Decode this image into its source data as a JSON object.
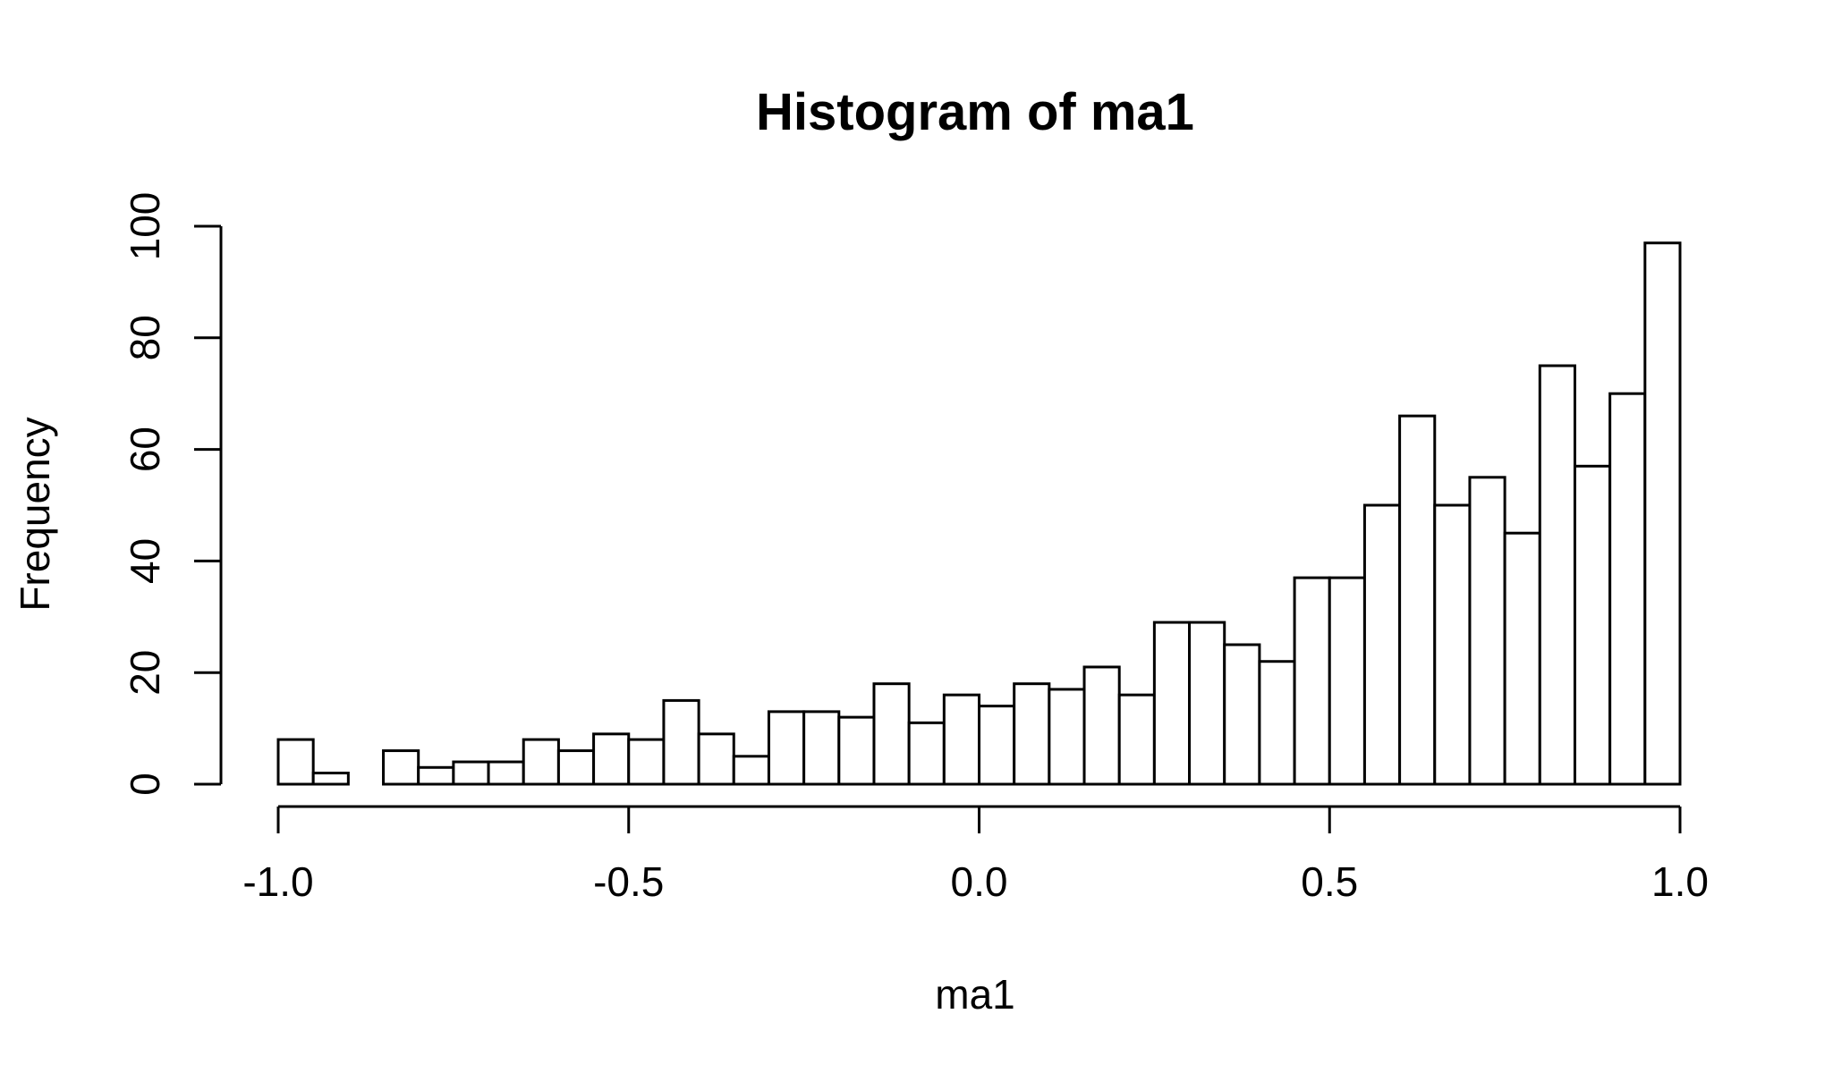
{
  "chart_data": {
    "type": "bar",
    "title": "Histogram of ma1",
    "xlabel": "ma1",
    "ylabel": "Frequency",
    "bin_width": 0.05,
    "bin_start": -1.0,
    "values": [
      8,
      2,
      0,
      6,
      3,
      4,
      4,
      8,
      6,
      9,
      8,
      15,
      9,
      5,
      13,
      13,
      12,
      18,
      11,
      16,
      14,
      18,
      17,
      21,
      16,
      29,
      29,
      25,
      22,
      37,
      37,
      50,
      66,
      50,
      55,
      45,
      75,
      57,
      70,
      97
    ],
    "xlim": [
      -1.0,
      1.0
    ],
    "ylim": [
      0,
      100
    ],
    "x_ticks": [
      -1.0,
      -0.5,
      0.0,
      0.5,
      1.0
    ],
    "x_tick_labels": [
      "-1.0",
      "-0.5",
      "0.0",
      "0.5",
      "1.0"
    ],
    "y_ticks": [
      0,
      20,
      40,
      60,
      80,
      100
    ],
    "y_tick_labels": [
      "0",
      "20",
      "40",
      "60",
      "80",
      "100"
    ],
    "grid": false,
    "colors": {
      "bar_fill": "#ffffff",
      "bar_stroke": "#000000"
    }
  }
}
